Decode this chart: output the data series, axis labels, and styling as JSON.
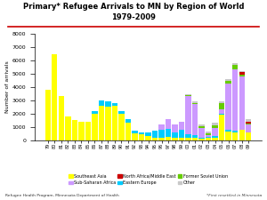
{
  "title_line1": "Primary* Refugee Arrivals to MN by Region of World",
  "title_line2": "1979-2009",
  "ylabel": "Number of arrivals",
  "years": [
    1979,
    1980,
    1981,
    1982,
    1983,
    1984,
    1985,
    1986,
    1987,
    1988,
    1989,
    1990,
    1991,
    1992,
    1993,
    1994,
    1995,
    1996,
    1997,
    1998,
    1999,
    2000,
    2001,
    2002,
    2003,
    2004,
    2005,
    2006,
    2007,
    2008,
    2009
  ],
  "southeast_asia": [
    3800,
    6500,
    3300,
    1750,
    1500,
    1400,
    1350,
    2000,
    2600,
    2500,
    2550,
    2000,
    1300,
    500,
    450,
    300,
    200,
    200,
    250,
    200,
    150,
    150,
    150,
    100,
    150,
    200,
    1900,
    650,
    600,
    750,
    550
  ],
  "sub_saharan_africa": [
    0,
    0,
    0,
    0,
    0,
    0,
    0,
    0,
    0,
    0,
    0,
    0,
    0,
    0,
    0,
    0,
    0,
    400,
    700,
    600,
    650,
    2900,
    2300,
    700,
    150,
    600,
    300,
    3500,
    4600,
    4000,
    550
  ],
  "north_africa_me": [
    0,
    0,
    0,
    0,
    0,
    0,
    0,
    0,
    0,
    0,
    0,
    0,
    0,
    0,
    0,
    0,
    0,
    0,
    0,
    0,
    0,
    0,
    0,
    0,
    0,
    0,
    0,
    0,
    0,
    200,
    150
  ],
  "eastern_europe": [
    0,
    0,
    0,
    0,
    0,
    0,
    0,
    200,
    400,
    400,
    250,
    200,
    300,
    200,
    150,
    300,
    500,
    600,
    600,
    400,
    600,
    300,
    250,
    100,
    100,
    100,
    100,
    100,
    100,
    50,
    50
  ],
  "former_soviet_union": [
    0,
    0,
    0,
    0,
    0,
    0,
    0,
    0,
    0,
    0,
    0,
    0,
    0,
    0,
    0,
    0,
    0,
    0,
    0,
    0,
    0,
    50,
    100,
    150,
    100,
    200,
    500,
    200,
    400,
    100,
    100
  ],
  "other": [
    0,
    0,
    0,
    0,
    0,
    0,
    0,
    0,
    0,
    0,
    0,
    0,
    0,
    0,
    0,
    0,
    0,
    0,
    0,
    0,
    0,
    50,
    100,
    100,
    150,
    200,
    100,
    150,
    100,
    100,
    150
  ],
  "color_southeast_asia": "#FFFF00",
  "color_sub_saharan_africa": "#CC99FF",
  "color_north_africa_me": "#CC0000",
  "color_eastern_europe": "#00CCFF",
  "color_former_soviet_union": "#66CC00",
  "color_other": "#C8C8C8",
  "ylim": [
    0,
    8000
  ],
  "yticks": [
    0,
    1000,
    2000,
    3000,
    4000,
    5000,
    6000,
    7000,
    8000
  ],
  "footer_left": "Refugee Health Program, Minnesota Department of Health",
  "footer_right": "*First resettled in Minnesota",
  "title_color": "#000000",
  "title_line_color": "#CC0000",
  "background_color": "#FFFFFF",
  "legend_labels": [
    "Southeast Asia",
    "Sub-Saharan Africa",
    "North Africa/Middle East",
    "Eastern Europe",
    "Former Soviet Union",
    "Other"
  ]
}
